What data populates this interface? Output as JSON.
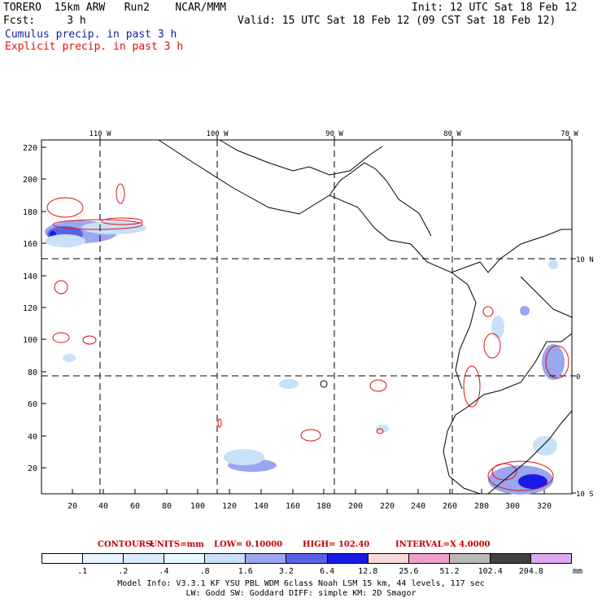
{
  "header": {
    "line1_left": "TORERO  15km ARW   Run2    NCAR/MMM",
    "line1_right": "Init: 12 UTC Sat 18 Feb 12",
    "line2_left": "Fcst:     3 h",
    "line2_right": "Valid: 15 UTC Sat 18 Feb 12 (09 CST Sat 18 Feb 12)",
    "legend_blue": "Cumulus precip. in past 3 h",
    "legend_red": "Explicit precip. in past 3 h"
  },
  "map": {
    "lon_labels": [
      "110 W",
      "100 W",
      "90 W",
      "80 W",
      "70 W"
    ],
    "lat_labels": [
      "10 N",
      "0",
      "10 S"
    ],
    "y_ticks": [
      "220",
      "200",
      "180",
      "160",
      "140",
      "120",
      "100",
      "80",
      "60",
      "40",
      "20"
    ],
    "x_ticks": [
      "20",
      "40",
      "60",
      "80",
      "100",
      "120",
      "140",
      "160",
      "180",
      "200",
      "220",
      "240",
      "260",
      "280",
      "300",
      "320"
    ]
  },
  "contours": {
    "label": "CONTOURS:",
    "units": "UNITS=mm",
    "low": "LOW= 0.10000",
    "high": "HIGH=  102.40",
    "interval": "INTERVAL=X  4.0000"
  },
  "colorbar": {
    "colors": [
      "#ffffff",
      "#e8f4ff",
      "#d8ecff",
      "#e6fbff",
      "#c8e0f8",
      "#9aa6f0",
      "#5a62e6",
      "#1a1ae6",
      "#f8d8d8",
      "#f0a0c8",
      "#b8b8b8",
      "#404040",
      "#d8a8f0"
    ],
    "labels": [
      ".1",
      ".2",
      ".4",
      ".8",
      "1.6",
      "3.2",
      "6.4",
      "12.8",
      "25.6",
      "51.2",
      "102.4",
      "204.8"
    ],
    "unit": "mm"
  },
  "footer": {
    "line1": "Model Info: V3.3.1    KF      YSU PBL   WDM 6class  Noah LSM  15 km,    44 levels,   117 sec",
    "line2": "LW: Godd SW: Goddard DIFF: simple KM: 2D Smagor"
  }
}
